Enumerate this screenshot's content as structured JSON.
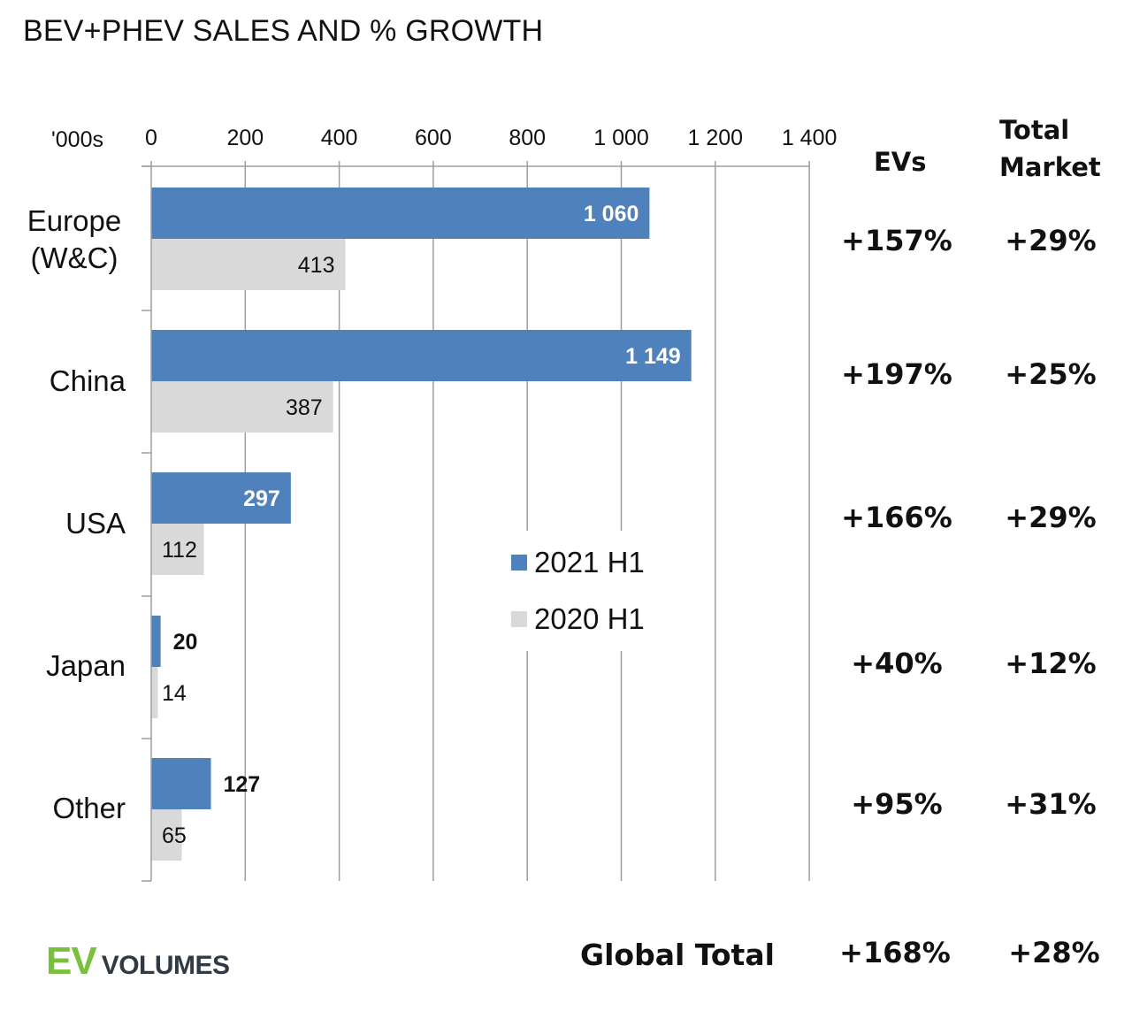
{
  "chart_data": {
    "type": "bar",
    "orientation": "horizontal",
    "title": "BEV+PHEV SALES AND % GROWTH",
    "units": "'000s",
    "categories": [
      "Europe\n(W&C)",
      "China",
      "USA",
      "Japan",
      "Other"
    ],
    "series": [
      {
        "name": "2021 H1",
        "color": "#4f81bd",
        "values": [
          1060,
          1149,
          297,
          20,
          127
        ],
        "labels": [
          "1 060",
          "1 149",
          "297",
          "20",
          "127"
        ]
      },
      {
        "name": "2020 H1",
        "color": "#d9d9d9",
        "values": [
          413,
          387,
          112,
          14,
          65
        ],
        "labels": [
          "413",
          "387",
          "112",
          "14",
          "65"
        ]
      }
    ],
    "xlim": [
      0,
      1400
    ],
    "x_ticks": [
      0,
      200,
      400,
      600,
      800,
      1000,
      1200,
      1400
    ],
    "x_tick_labels": [
      "0",
      "200",
      "400",
      "600",
      "800",
      "1 000",
      "1 200",
      "1 400"
    ],
    "grid": true,
    "legend_position": "center"
  },
  "growth_table": {
    "headers": {
      "evs": "EVs",
      "total_market": "Total\nMarket"
    },
    "rows": [
      {
        "evs": "+157%",
        "total": "+29%"
      },
      {
        "evs": "+197%",
        "total": "+25%"
      },
      {
        "evs": "+166%",
        "total": "+29%"
      },
      {
        "evs": "+40%",
        "total": "+12%"
      },
      {
        "evs": "+95%",
        "total": "+31%"
      }
    ],
    "global": {
      "label": "Global Total",
      "evs": "+168%",
      "total": "+28%"
    }
  },
  "logo": {
    "ev": "EV",
    "volumes": "VOLUMES",
    "ev_color": "#7bbf3e",
    "volumes_color": "#2f3a45"
  }
}
